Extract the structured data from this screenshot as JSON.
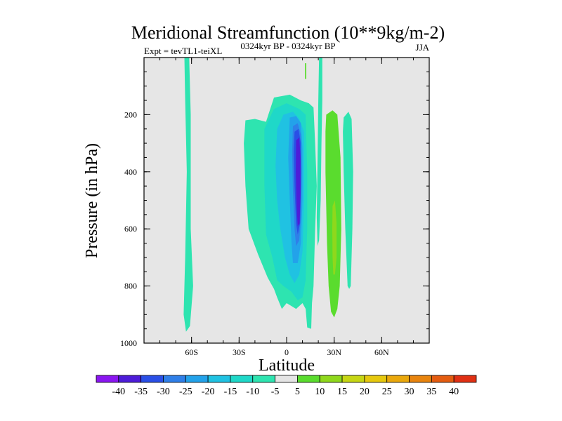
{
  "chart_data": {
    "type": "contour",
    "title": "Meridional Streamfunction (10**9kg/m-2)",
    "subtitle_left": "Expt = tevTL1-teiXL",
    "subtitle_center": "0324kyr BP - 0324kyr BP",
    "subtitle_right": "JJA",
    "xlabel": "Latitude",
    "ylabel": "Pressure (in hPa)",
    "xlim": [
      -90,
      90
    ],
    "ylim": [
      1000,
      0
    ],
    "x_ticks": [
      {
        "value": -60,
        "label": "60S"
      },
      {
        "value": -30,
        "label": "30S"
      },
      {
        "value": 0,
        "label": "0"
      },
      {
        "value": 30,
        "label": "30N"
      },
      {
        "value": 60,
        "label": "60N"
      }
    ],
    "y_ticks": [
      {
        "value": 200,
        "label": "200"
      },
      {
        "value": 400,
        "label": "400"
      },
      {
        "value": 600,
        "label": "600"
      },
      {
        "value": 800,
        "label": "800"
      },
      {
        "value": 1000,
        "label": "1000"
      }
    ],
    "background_color": "#e6e6e6",
    "contour_levels": [
      -40,
      -35,
      -30,
      -25,
      -20,
      -15,
      -10,
      -5,
      5,
      10,
      15,
      20,
      25,
      30,
      35,
      40
    ],
    "colorbar_colors": [
      "#8a16f0",
      "#4d1cd8",
      "#2a4fe6",
      "#2f7fe8",
      "#23a2ea",
      "#20c2e2",
      "#1fd8c8",
      "#2ee4b0",
      "#e4e4e4",
      "#5adc2e",
      "#8fd81c",
      "#c6d614",
      "#e6c80e",
      "#eaa80c",
      "#e8840e",
      "#e45c10",
      "#e03014"
    ],
    "regions": [
      {
        "name": "band-60s",
        "bin": -5,
        "color": "#2ee4b0",
        "outline": [
          [
            -64.5,
            0
          ],
          [
            -61.5,
            0
          ],
          [
            -60.5,
            200
          ],
          [
            -60.5,
            600
          ],
          [
            -59,
            800
          ],
          [
            -61,
            940
          ],
          [
            -63.5,
            960
          ],
          [
            -65,
            900
          ],
          [
            -64,
            700
          ],
          [
            -63,
            400
          ],
          [
            -64,
            150
          ]
        ]
      },
      {
        "name": "core-minus5",
        "bin": -5,
        "color": "#2ee4b0",
        "outline": [
          [
            -26,
            220
          ],
          [
            -20,
            215
          ],
          [
            -13,
            225
          ],
          [
            -8,
            140
          ],
          [
            2,
            130
          ],
          [
            9,
            150
          ],
          [
            14,
            160
          ],
          [
            17,
            175
          ],
          [
            18,
            300
          ],
          [
            19,
            450
          ],
          [
            18,
            600
          ],
          [
            17,
            800
          ],
          [
            16,
            860
          ],
          [
            15.5,
            950
          ],
          [
            13,
            945
          ],
          [
            12,
            880
          ],
          [
            10,
            860
          ],
          [
            6,
            880
          ],
          [
            3,
            870
          ],
          [
            0,
            860
          ],
          [
            -3,
            880
          ],
          [
            -6,
            840
          ],
          [
            -8,
            810
          ],
          [
            -12,
            770
          ],
          [
            -18,
            690
          ],
          [
            -24,
            600
          ],
          [
            -26,
            450
          ],
          [
            -27,
            300
          ]
        ]
      },
      {
        "name": "core-minus10",
        "bin": -10,
        "color": "#1fd8c8",
        "outline": [
          [
            -14,
            250
          ],
          [
            -8,
            180
          ],
          [
            0,
            160
          ],
          [
            8,
            180
          ],
          [
            12,
            200
          ],
          [
            13,
            400
          ],
          [
            13,
            600
          ],
          [
            12,
            780
          ],
          [
            10,
            840
          ],
          [
            7,
            850
          ],
          [
            3,
            820
          ],
          [
            -2,
            800
          ],
          [
            -6,
            780
          ],
          [
            -9,
            700
          ],
          [
            -13,
            620
          ],
          [
            -14,
            450
          ]
        ]
      },
      {
        "name": "core-minus15",
        "bin": -15,
        "color": "#20c2e2",
        "outline": [
          [
            -6,
            250
          ],
          [
            -2,
            200
          ],
          [
            4,
            190
          ],
          [
            8,
            215
          ],
          [
            11,
            260
          ],
          [
            11,
            500
          ],
          [
            10,
            680
          ],
          [
            8,
            760
          ],
          [
            5,
            790
          ],
          [
            2,
            760
          ],
          [
            -1,
            700
          ],
          [
            -4,
            600
          ],
          [
            -6,
            500
          ],
          [
            -7,
            380
          ]
        ]
      },
      {
        "name": "core-minus20",
        "bin": -20,
        "color": "#23a2ea",
        "outline": [
          [
            2,
            210
          ],
          [
            6,
            205
          ],
          [
            9,
            230
          ],
          [
            10,
            320
          ],
          [
            10,
            500
          ],
          [
            9,
            650
          ],
          [
            7,
            720
          ],
          [
            4,
            720
          ],
          [
            3,
            640
          ],
          [
            2,
            500
          ],
          [
            1,
            350
          ]
        ]
      },
      {
        "name": "core-minus25",
        "bin": -25,
        "color": "#2f7fe8",
        "outline": [
          [
            4,
            240
          ],
          [
            7,
            230
          ],
          [
            9,
            270
          ],
          [
            9.5,
            400
          ],
          [
            9,
            560
          ],
          [
            8,
            640
          ],
          [
            6,
            660
          ],
          [
            5,
            600
          ],
          [
            4,
            470
          ],
          [
            3.5,
            330
          ]
        ]
      },
      {
        "name": "core-minus30",
        "bin": -30,
        "color": "#2a4fe6",
        "outline": [
          [
            5,
            260
          ],
          [
            7.5,
            250
          ],
          [
            9,
            300
          ],
          [
            9,
            450
          ],
          [
            8.5,
            580
          ],
          [
            7,
            620
          ],
          [
            6,
            580
          ],
          [
            5,
            450
          ],
          [
            4.5,
            330
          ]
        ]
      },
      {
        "name": "core-minus35",
        "bin": -35,
        "color": "#4d1cd8",
        "outline": [
          [
            6,
            290
          ],
          [
            8,
            280
          ],
          [
            8.8,
            350
          ],
          [
            8.8,
            480
          ],
          [
            8.2,
            580
          ],
          [
            7,
            590
          ],
          [
            6.3,
            520
          ],
          [
            5.8,
            400
          ]
        ]
      },
      {
        "name": "bar-north-minus5",
        "bin": -5,
        "color": "#2ee4b0",
        "outline": [
          [
            20.5,
            0
          ],
          [
            22.5,
            0
          ],
          [
            22.5,
            150
          ],
          [
            22,
            300
          ],
          [
            21.5,
            500
          ],
          [
            20.5,
            640
          ],
          [
            19.5,
            660
          ],
          [
            19,
            560
          ],
          [
            19.5,
            360
          ],
          [
            20,
            150
          ]
        ]
      },
      {
        "name": "nh-minus5",
        "bin": -5,
        "color": "#2ee4b0",
        "outline": [
          [
            36,
            210
          ],
          [
            39,
            190
          ],
          [
            41,
            215
          ],
          [
            42,
            400
          ],
          [
            41.5,
            600
          ],
          [
            40.5,
            800
          ],
          [
            39.5,
            810
          ],
          [
            38.5,
            800
          ],
          [
            37,
            600
          ],
          [
            36,
            400
          ],
          [
            35.5,
            260
          ]
        ]
      },
      {
        "name": "nh-plus5",
        "bin": 5,
        "color": "#5adc2e",
        "outline": [
          [
            25,
            200
          ],
          [
            29,
            185
          ],
          [
            32,
            200
          ],
          [
            34,
            350
          ],
          [
            34.5,
            600
          ],
          [
            33.5,
            800
          ],
          [
            32,
            880
          ],
          [
            30,
            910
          ],
          [
            28,
            890
          ],
          [
            26.5,
            800
          ],
          [
            25.5,
            650
          ],
          [
            24.5,
            400
          ],
          [
            24.5,
            260
          ]
        ]
      },
      {
        "name": "nh-plus10",
        "bin": 10,
        "color": "#8fd81c",
        "outline": [
          [
            29,
            520
          ],
          [
            30.5,
            500
          ],
          [
            31.5,
            580
          ],
          [
            31.5,
            700
          ],
          [
            30.5,
            760
          ],
          [
            29.5,
            760
          ],
          [
            29,
            700
          ],
          [
            28.8,
            600
          ]
        ]
      },
      {
        "name": "nh-plus5-sliver",
        "bin": 5,
        "color": "#5adc2e",
        "outline": [
          [
            11.6,
            20
          ],
          [
            12.4,
            20
          ],
          [
            12.4,
            75
          ],
          [
            11.6,
            75
          ]
        ]
      }
    ]
  }
}
